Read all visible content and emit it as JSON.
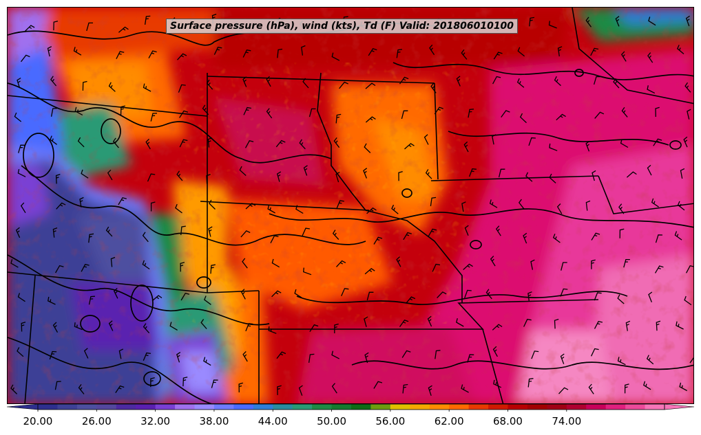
{
  "title": "Surface pressure (hPa), wind (kts), Td (F) Valid: 201806010100",
  "colorbar": {
    "labels": [
      "20.00",
      "26.00",
      "32.00",
      "38.00",
      "44.00",
      "50.00",
      "56.00",
      "62.00",
      "68.00",
      "74.00"
    ],
    "colors": [
      "#2e2f8e",
      "#3e4196",
      "#4d4fa0",
      "#54479e",
      "#4d2aa1",
      "#5a20b0",
      "#7a3fd4",
      "#a070ee",
      "#9a8aff",
      "#6f7bff",
      "#4a6bff",
      "#2f7ed8",
      "#2a8c9f",
      "#2a9a74",
      "#1e8a44",
      "#157a2e",
      "#0f6b15",
      "#6c9c10",
      "#e0c000",
      "#f5a800",
      "#ff8c00",
      "#ff6a00",
      "#e83a00",
      "#d01a00",
      "#b80000",
      "#a30000",
      "#a00014",
      "#b00030",
      "#c8005a",
      "#e0207e",
      "#ec4a9a",
      "#f675b8"
    ]
  },
  "legend_values": {
    "min": 20,
    "max": 76,
    "step": 2
  }
}
